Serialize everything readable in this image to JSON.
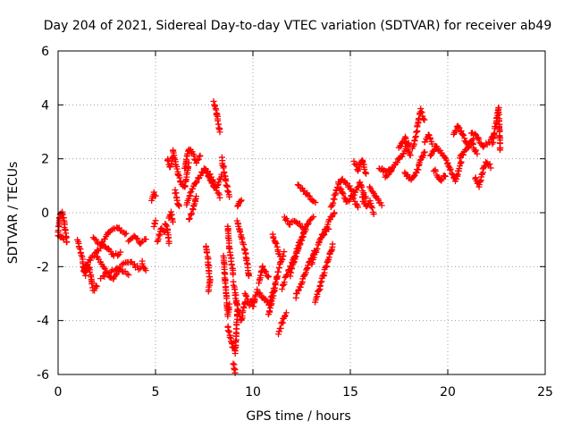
{
  "chart_data": {
    "type": "scatter",
    "title": "Day 204 of 2021, Sidereal Day-to-day VTEC variation (SDTVAR) for receiver ab49",
    "xlabel": "GPS time / hours",
    "ylabel": "SDTVAR / TECUs",
    "xlim": [
      0,
      25
    ],
    "ylim": [
      -6,
      6
    ],
    "x_ticks": [
      0,
      5,
      10,
      15,
      20,
      25
    ],
    "y_ticks": [
      -6,
      -4,
      -2,
      0,
      2,
      4,
      6
    ],
    "x_tick_labels": [
      "0",
      "5",
      "10",
      "15",
      "20",
      "25"
    ],
    "y_tick_labels": [
      "-6",
      "-4",
      "-2",
      "0",
      "2",
      "4",
      "6"
    ],
    "grid": true,
    "marker": "+",
    "series": [
      {
        "name": "SDTVAR",
        "color": "#ff0000",
        "segments": [
          {
            "x": [
              0.0,
              0.1,
              0.2,
              0.3,
              0.45
            ],
            "y": [
              -0.7,
              -0.1,
              0.0,
              -0.3,
              -1.1
            ]
          },
          {
            "x": [
              0.0,
              0.15,
              0.3
            ],
            "y": [
              -0.8,
              -0.9,
              -1.0
            ]
          },
          {
            "x": [
              1.0,
              1.2,
              1.4,
              1.6,
              1.8,
              2.0
            ],
            "y": [
              -1.0,
              -1.6,
              -2.3,
              -2.0,
              -2.9,
              -2.7
            ]
          },
          {
            "x": [
              1.3,
              1.6,
              2.0,
              2.4,
              2.8,
              3.2
            ],
            "y": [
              -2.2,
              -1.8,
              -1.4,
              -1.2,
              -1.6,
              -1.5
            ]
          },
          {
            "x": [
              1.8,
              2.2,
              2.6,
              3.0,
              3.5
            ],
            "y": [
              -0.9,
              -1.2,
              -0.7,
              -0.5,
              -0.8
            ]
          },
          {
            "x": [
              2.0,
              2.4,
              2.8,
              3.2,
              3.6
            ],
            "y": [
              -1.6,
              -2.1,
              -2.5,
              -2.1,
              -2.3
            ]
          },
          {
            "x": [
              2.2,
              2.7,
              3.2,
              3.7,
              4.2
            ],
            "y": [
              -2.4,
              -2.2,
              -2.0,
              -1.8,
              -2.1
            ]
          },
          {
            "x": [
              3.6,
              3.9,
              4.2,
              4.5
            ],
            "y": [
              -1.0,
              -0.9,
              -1.1,
              -1.0
            ]
          },
          {
            "x": [
              4.3,
              4.5
            ],
            "y": [
              -1.8,
              -2.2
            ]
          },
          {
            "x": [
              4.8,
              4.9,
              5.0
            ],
            "y": [
              0.5,
              0.7,
              0.6
            ]
          },
          {
            "x": [
              4.9,
              5.0
            ],
            "y": [
              -0.5,
              -0.3
            ]
          },
          {
            "x": [
              5.1,
              5.3,
              5.5
            ],
            "y": [
              -1.1,
              -0.6,
              -0.7
            ]
          },
          {
            "x": [
              5.5,
              5.6,
              5.7
            ],
            "y": [
              -0.4,
              -0.6,
              -1.1
            ]
          },
          {
            "x": [
              5.7,
              5.8,
              5.9
            ],
            "y": [
              -0.2,
              0.0,
              -0.3
            ]
          },
          {
            "x": [
              5.6,
              5.75,
              5.9
            ],
            "y": [
              2.0,
              1.7,
              2.1
            ]
          },
          {
            "x": [
              5.9,
              6.1,
              6.3,
              6.5,
              6.7
            ],
            "y": [
              2.3,
              1.6,
              1.1,
              0.9,
              1.8
            ]
          },
          {
            "x": [
              6.0,
              6.1,
              6.2
            ],
            "y": [
              0.8,
              0.5,
              0.2
            ]
          },
          {
            "x": [
              6.5,
              6.7,
              6.9,
              7.1,
              7.3
            ],
            "y": [
              1.6,
              2.4,
              2.2,
              1.9,
              2.1
            ]
          },
          {
            "x": [
              6.7,
              6.9,
              7.1
            ],
            "y": [
              -0.3,
              0.1,
              0.6
            ]
          },
          {
            "x": [
              6.6,
              6.9,
              7.2,
              7.5
            ],
            "y": [
              0.3,
              0.9,
              1.3,
              1.6
            ]
          },
          {
            "x": [
              7.5,
              7.8,
              8.1,
              8.4
            ],
            "y": [
              1.7,
              1.2,
              0.9,
              1.4
            ]
          },
          {
            "x": [
              7.7,
              8.0,
              8.3
            ],
            "y": [
              1.5,
              1.1,
              0.6
            ]
          },
          {
            "x": [
              8.0,
              8.1,
              8.2,
              8.3
            ],
            "y": [
              4.1,
              3.8,
              3.4,
              3.0
            ]
          },
          {
            "x": [
              8.4,
              8.6,
              8.8
            ],
            "y": [
              2.0,
              1.2,
              0.6
            ]
          },
          {
            "x": [
              7.6,
              7.7,
              7.8
            ],
            "y": [
              -1.2,
              -1.8,
              -2.6
            ]
          },
          {
            "x": [
              7.7,
              7.8
            ],
            "y": [
              -2.9,
              -2.6
            ]
          },
          {
            "x": [
              8.5,
              8.6,
              8.7,
              8.8
            ],
            "y": [
              -1.6,
              -2.8,
              -3.8,
              -3.4
            ]
          },
          {
            "x": [
              8.7,
              8.9,
              9.1,
              9.2
            ],
            "y": [
              -4.2,
              -4.8,
              -5.2,
              -3.6
            ]
          },
          {
            "x": [
              9.0,
              9.1
            ],
            "y": [
              -5.6,
              -5.9
            ]
          },
          {
            "x": [
              8.7,
              8.8,
              9.0
            ],
            "y": [
              -0.5,
              -1.4,
              -2.3
            ]
          },
          {
            "x": [
              9.0,
              9.2,
              9.4,
              9.6
            ],
            "y": [
              -2.6,
              -3.5,
              -4.0,
              -3.3
            ]
          },
          {
            "x": [
              9.2,
              9.4,
              9.6,
              9.8
            ],
            "y": [
              -0.3,
              -0.9,
              -1.4,
              -2.4
            ]
          },
          {
            "x": [
              9.2,
              9.4
            ],
            "y": [
              0.2,
              0.5
            ]
          },
          {
            "x": [
              9.6,
              9.8,
              10.0
            ],
            "y": [
              -3.0,
              -3.4,
              -3.2
            ]
          },
          {
            "x": [
              10.0,
              10.2,
              10.5,
              10.8,
              11.1
            ],
            "y": [
              -3.5,
              -2.9,
              -3.1,
              -3.4,
              -2.8
            ]
          },
          {
            "x": [
              10.3,
              10.5,
              10.8
            ],
            "y": [
              -2.6,
              -2.0,
              -2.4
            ]
          },
          {
            "x": [
              10.8,
              11.0,
              11.2,
              11.4,
              11.6
            ],
            "y": [
              -3.8,
              -3.2,
              -2.5,
              -1.9,
              -1.5
            ]
          },
          {
            "x": [
              11.0,
              11.2,
              11.4
            ],
            "y": [
              -0.8,
              -1.2,
              -1.6
            ]
          },
          {
            "x": [
              11.3,
              11.5,
              11.7
            ],
            "y": [
              -4.5,
              -4.1,
              -3.7
            ]
          },
          {
            "x": [
              11.5,
              11.8,
              12.1,
              12.4,
              12.7
            ],
            "y": [
              -2.8,
              -2.2,
              -1.7,
              -1.1,
              -0.6
            ]
          },
          {
            "x": [
              11.9,
              12.2,
              12.5,
              12.8,
              13.1
            ],
            "y": [
              -2.3,
              -1.6,
              -1.0,
              -0.4,
              -0.2
            ]
          },
          {
            "x": [
              11.6,
              11.9,
              12.2,
              12.6
            ],
            "y": [
              -0.2,
              -0.4,
              -0.3,
              -0.6
            ]
          },
          {
            "x": [
              12.2,
              12.5,
              12.8,
              13.2
            ],
            "y": [
              -3.1,
              -2.6,
              -2.0,
              -1.4
            ]
          },
          {
            "x": [
              12.3,
              12.6,
              12.9,
              13.2
            ],
            "y": [
              1.0,
              0.8,
              0.6,
              0.4
            ]
          },
          {
            "x": [
              13.0,
              13.3,
              13.6,
              13.9
            ],
            "y": [
              -1.9,
              -1.3,
              -0.8,
              -0.6
            ]
          },
          {
            "x": [
              13.2,
              13.5,
              13.8,
              14.1
            ],
            "y": [
              -3.3,
              -2.6,
              -1.9,
              -1.2
            ]
          },
          {
            "x": [
              13.6,
              13.9,
              14.2
            ],
            "y": [
              -0.8,
              -0.3,
              0.0
            ]
          },
          {
            "x": [
              14.0,
              14.2,
              14.4,
              14.6
            ],
            "y": [
              0.2,
              0.6,
              1.1,
              1.3
            ]
          },
          {
            "x": [
              14.5,
              14.8,
              15.1,
              15.4
            ],
            "y": [
              0.9,
              0.4,
              0.6,
              0.2
            ]
          },
          {
            "x": [
              14.6,
              14.9,
              15.2,
              15.5,
              15.8
            ],
            "y": [
              1.2,
              1.0,
              0.7,
              1.1,
              0.5
            ]
          },
          {
            "x": [
              15.2,
              15.4,
              15.6,
              15.8
            ],
            "y": [
              1.9,
              1.6,
              2.0,
              1.4
            ]
          },
          {
            "x": [
              15.6,
              15.8,
              16.0,
              16.2
            ],
            "y": [
              0.6,
              0.2,
              0.4,
              0.0
            ]
          },
          {
            "x": [
              16.0,
              16.3,
              16.6
            ],
            "y": [
              0.9,
              0.6,
              0.3
            ]
          },
          {
            "x": [
              16.5,
              16.8,
              17.1
            ],
            "y": [
              1.7,
              1.5,
              1.6
            ]
          },
          {
            "x": [
              16.8,
              17.1,
              17.4,
              17.7,
              18.0
            ],
            "y": [
              1.3,
              1.6,
              1.9,
              2.2,
              2.6
            ]
          },
          {
            "x": [
              17.5,
              17.8,
              18.1
            ],
            "y": [
              2.4,
              2.8,
              2.1
            ]
          },
          {
            "x": [
              17.8,
              18.1,
              18.4
            ],
            "y": [
              1.5,
              1.2,
              1.5
            ]
          },
          {
            "x": [
              18.2,
              18.4,
              18.6,
              18.8
            ],
            "y": [
              2.4,
              3.0,
              3.8,
              3.4
            ]
          },
          {
            "x": [
              18.4,
              18.6,
              18.8
            ],
            "y": [
              1.5,
              1.9,
              2.3
            ]
          },
          {
            "x": [
              18.8,
              19.0,
              19.2
            ],
            "y": [
              2.6,
              2.9,
              2.6
            ]
          },
          {
            "x": [
              19.1,
              19.4,
              19.7,
              20.0
            ],
            "y": [
              2.1,
              2.5,
              2.2,
              1.9
            ]
          },
          {
            "x": [
              19.3,
              19.6,
              19.9
            ],
            "y": [
              1.6,
              1.2,
              1.4
            ]
          },
          {
            "x": [
              20.0,
              20.2,
              20.4,
              20.7
            ],
            "y": [
              1.8,
              1.5,
              1.2,
              1.9
            ]
          },
          {
            "x": [
              20.3,
              20.5,
              20.7,
              21.0,
              21.3
            ],
            "y": [
              2.9,
              3.2,
              3.0,
              2.5,
              2.7
            ]
          },
          {
            "x": [
              20.6,
              20.9,
              21.2,
              21.5
            ],
            "y": [
              2.0,
              2.3,
              2.6,
              2.2
            ]
          },
          {
            "x": [
              21.2,
              21.5,
              21.8,
              22.1,
              22.4
            ],
            "y": [
              3.0,
              2.8,
              2.5,
              2.6,
              2.9
            ]
          },
          {
            "x": [
              21.4,
              21.6,
              21.8
            ],
            "y": [
              1.3,
              1.0,
              1.5
            ]
          },
          {
            "x": [
              21.8,
              22.0,
              22.2
            ],
            "y": [
              1.6,
              1.9,
              1.7
            ]
          },
          {
            "x": [
              22.3,
              22.5,
              22.6,
              22.7
            ],
            "y": [
              2.6,
              3.4,
              3.9,
              2.3
            ]
          }
        ]
      }
    ]
  }
}
